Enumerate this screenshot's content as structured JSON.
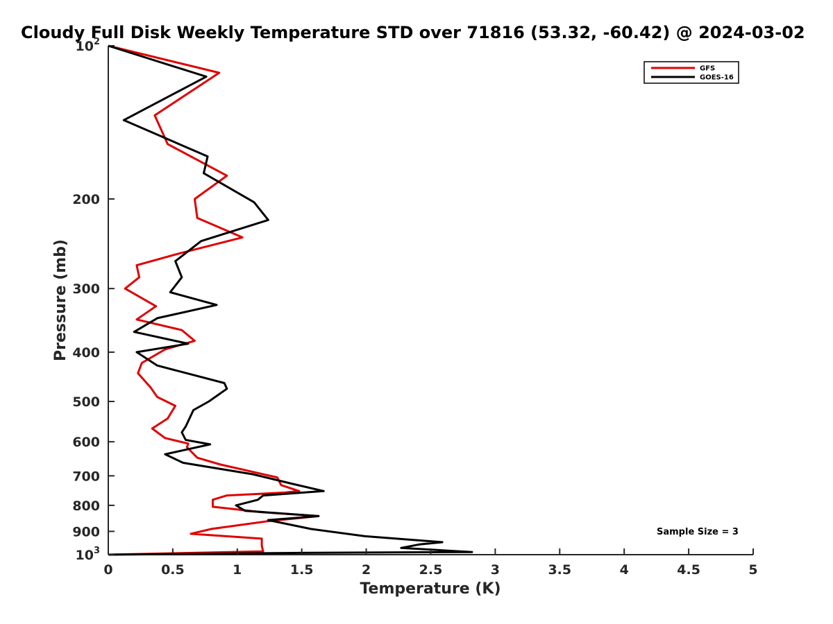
{
  "chart_data": {
    "type": "line",
    "title": "Cloudy Full Disk Weekly Temperature STD over 71816 (53.32, -60.42) @ 2024-03-02",
    "xlabel": "Temperature (K)",
    "ylabel": "Pressure (mb)",
    "xlim": [
      0,
      5
    ],
    "ylim": [
      1000,
      100
    ],
    "yscale": "log",
    "y_reversed": true,
    "grid": false,
    "legend_position": "top-right",
    "x_ticks": [
      "0",
      "0.5",
      "1",
      "1.5",
      "2",
      "2.5",
      "3",
      "3.5",
      "4",
      "4.5",
      "5"
    ],
    "y_ticks": [
      {
        "value": 100,
        "base": "10",
        "exp": "2"
      },
      {
        "value": 200,
        "label": "200"
      },
      {
        "value": 300,
        "label": "300"
      },
      {
        "value": 400,
        "label": "400"
      },
      {
        "value": 500,
        "label": "500"
      },
      {
        "value": 600,
        "label": "600"
      },
      {
        "value": 700,
        "label": "700"
      },
      {
        "value": 800,
        "label": "800"
      },
      {
        "value": 900,
        "label": "900"
      },
      {
        "value": 1000,
        "base": "10",
        "exp": "3"
      }
    ],
    "annotation": "Sample Size = 3",
    "series": [
      {
        "name": "GFS",
        "color": "#e00000",
        "points": [
          [
            0.0,
            100
          ],
          [
            0.86,
            113
          ],
          [
            0.36,
            137
          ],
          [
            0.46,
            156
          ],
          [
            0.92,
            180
          ],
          [
            0.67,
            200
          ],
          [
            0.69,
            218
          ],
          [
            1.04,
            238
          ],
          [
            0.55,
            256
          ],
          [
            0.22,
            270
          ],
          [
            0.24,
            285
          ],
          [
            0.13,
            300
          ],
          [
            0.37,
            325
          ],
          [
            0.22,
            345
          ],
          [
            0.57,
            362
          ],
          [
            0.67,
            380
          ],
          [
            0.44,
            395
          ],
          [
            0.26,
            420
          ],
          [
            0.23,
            440
          ],
          [
            0.33,
            470
          ],
          [
            0.38,
            490
          ],
          [
            0.52,
            510
          ],
          [
            0.46,
            540
          ],
          [
            0.34,
            565
          ],
          [
            0.44,
            590
          ],
          [
            0.62,
            605
          ],
          [
            0.61,
            615
          ],
          [
            0.69,
            645
          ],
          [
            0.87,
            665
          ],
          [
            1.31,
            705
          ],
          [
            1.34,
            730
          ],
          [
            1.48,
            750
          ],
          [
            1.37,
            755
          ],
          [
            0.92,
            765
          ],
          [
            0.81,
            780
          ],
          [
            0.81,
            805
          ],
          [
            1.19,
            825
          ],
          [
            1.63,
            840
          ],
          [
            1.23,
            860
          ],
          [
            0.8,
            890
          ],
          [
            0.64,
            910
          ],
          [
            1.19,
            930
          ],
          [
            1.19,
            960
          ],
          [
            1.2,
            985
          ],
          [
            0.0,
            1000
          ]
        ]
      },
      {
        "name": "GOES-16",
        "color": "#000000",
        "points": [
          [
            0.0,
            100
          ],
          [
            0.76,
            115
          ],
          [
            0.12,
            140
          ],
          [
            0.77,
            165
          ],
          [
            0.74,
            178
          ],
          [
            1.13,
            203
          ],
          [
            1.24,
            220
          ],
          [
            0.72,
            242
          ],
          [
            0.52,
            265
          ],
          [
            0.57,
            285
          ],
          [
            0.48,
            305
          ],
          [
            0.84,
            323
          ],
          [
            0.38,
            343
          ],
          [
            0.2,
            365
          ],
          [
            0.62,
            385
          ],
          [
            0.22,
            400
          ],
          [
            0.38,
            425
          ],
          [
            0.9,
            460
          ],
          [
            0.92,
            472
          ],
          [
            0.78,
            500
          ],
          [
            0.66,
            520
          ],
          [
            0.6,
            560
          ],
          [
            0.57,
            575
          ],
          [
            0.6,
            595
          ],
          [
            0.79,
            607
          ],
          [
            0.44,
            635
          ],
          [
            0.58,
            660
          ],
          [
            1.12,
            695
          ],
          [
            1.42,
            725
          ],
          [
            1.67,
            750
          ],
          [
            1.2,
            765
          ],
          [
            1.16,
            780
          ],
          [
            0.99,
            800
          ],
          [
            1.06,
            820
          ],
          [
            1.63,
            840
          ],
          [
            1.24,
            855
          ],
          [
            1.57,
            890
          ],
          [
            1.99,
            920
          ],
          [
            2.59,
            945
          ],
          [
            2.41,
            955
          ],
          [
            2.27,
            970
          ],
          [
            2.82,
            988
          ],
          [
            1.5,
            992
          ],
          [
            0.0,
            1000
          ]
        ]
      }
    ]
  }
}
